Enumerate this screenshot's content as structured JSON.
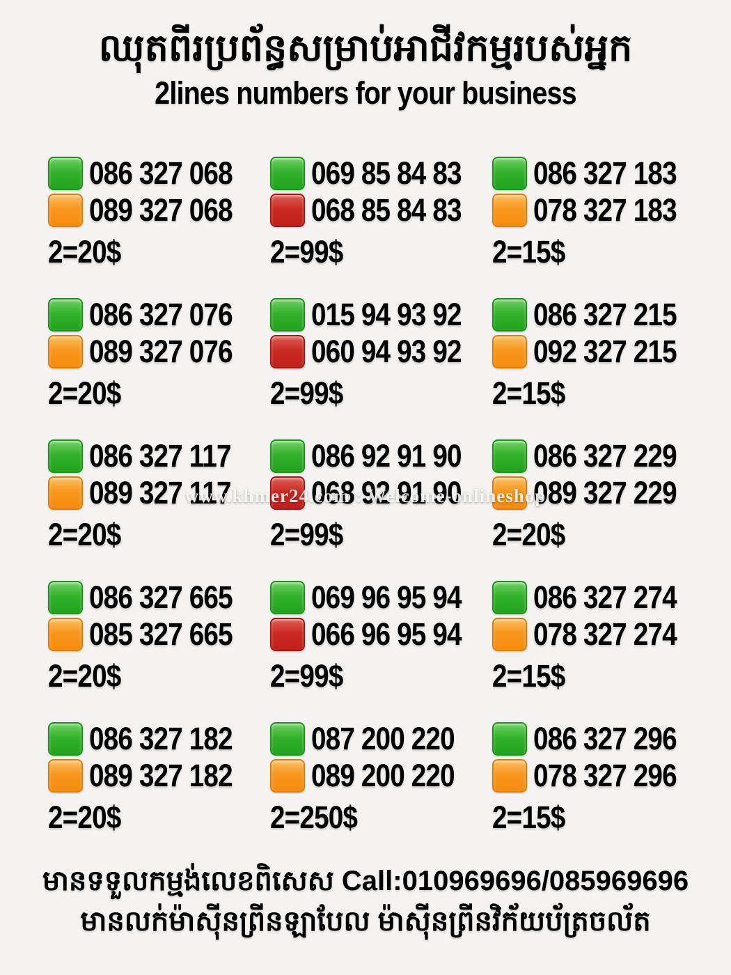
{
  "header": {
    "title_khmer": "ឈុតពីរប្រព័ន្ធសម្រាប់អាជីវកម្មរបស់អ្នក",
    "subtitle_english": "2lines numbers for your business"
  },
  "colors": {
    "green": "#33b22c",
    "orange": "#f8961d",
    "red": "#cb2a24",
    "background": "#f4f3f1",
    "text": "#000000"
  },
  "grid": {
    "cells": [
      {
        "line1": {
          "color": "green",
          "number": "086 327 068"
        },
        "line2": {
          "color": "orange",
          "number": "089 327 068"
        },
        "price": "2=20$"
      },
      {
        "line1": {
          "color": "green",
          "number": "069 85 84 83"
        },
        "line2": {
          "color": "red",
          "number": "068 85 84 83"
        },
        "price": "2=99$"
      },
      {
        "line1": {
          "color": "green",
          "number": "086 327 183"
        },
        "line2": {
          "color": "orange",
          "number": "078 327 183"
        },
        "price": "2=15$"
      },
      {
        "line1": {
          "color": "green",
          "number": "086 327 076"
        },
        "line2": {
          "color": "orange",
          "number": "089 327 076"
        },
        "price": "2=20$"
      },
      {
        "line1": {
          "color": "green",
          "number": "015 94 93 92"
        },
        "line2": {
          "color": "red",
          "number": "060 94 93 92"
        },
        "price": "2=99$"
      },
      {
        "line1": {
          "color": "green",
          "number": "086 327 215"
        },
        "line2": {
          "color": "orange",
          "number": "092 327 215"
        },
        "price": "2=15$"
      },
      {
        "line1": {
          "color": "green",
          "number": "086 327 117"
        },
        "line2": {
          "color": "orange",
          "number": "089 327 117"
        },
        "price": "2=20$"
      },
      {
        "line1": {
          "color": "green",
          "number": "086 92 91 90"
        },
        "line2": {
          "color": "red",
          "number": "068 92 91 90"
        },
        "price": "2=99$"
      },
      {
        "line1": {
          "color": "green",
          "number": "086 327 229"
        },
        "line2": {
          "color": "orange",
          "number": "089 327 229"
        },
        "price": "2=20$"
      },
      {
        "line1": {
          "color": "green",
          "number": "086 327 665"
        },
        "line2": {
          "color": "orange",
          "number": "085 327 665"
        },
        "price": "2=20$"
      },
      {
        "line1": {
          "color": "green",
          "number": "069 96 95 94"
        },
        "line2": {
          "color": "red",
          "number": "066 96 95 94"
        },
        "price": "2=99$"
      },
      {
        "line1": {
          "color": "green",
          "number": "086 327 274"
        },
        "line2": {
          "color": "orange",
          "number": "078 327 274"
        },
        "price": "2=15$"
      },
      {
        "line1": {
          "color": "green",
          "number": "086 327 182"
        },
        "line2": {
          "color": "orange",
          "number": "089 327 182"
        },
        "price": "2=20$"
      },
      {
        "line1": {
          "color": "green",
          "number": "087 200 220"
        },
        "line2": {
          "color": "orange",
          "number": "089 200 220"
        },
        "price": "2=250$"
      },
      {
        "line1": {
          "color": "green",
          "number": "086 327 296"
        },
        "line2": {
          "color": "orange",
          "number": "078 327 296"
        },
        "price": "2=15$"
      }
    ]
  },
  "watermark": {
    "text": "www.khmer24.com : Welcome-onlineshop"
  },
  "footer": {
    "line1": "មានទទួលកម្មង់លេខពិសេស Call:010969696/085969696",
    "line2": "មានលក់ម៉ាស៊ីនព្រីនឡាបែល ម៉ាស៊ីនព្រីនវិក័យប័ត្រចល័ត"
  }
}
